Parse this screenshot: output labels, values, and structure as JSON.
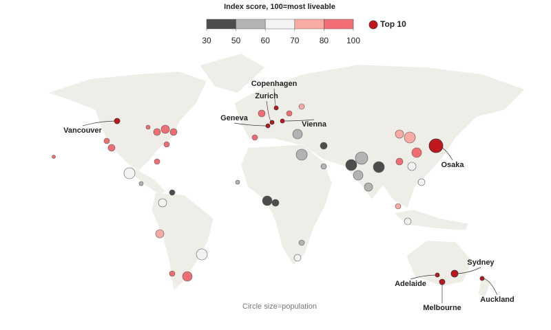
{
  "legend": {
    "title": "Index score, 100=most liveable",
    "ticks": [
      30,
      50,
      60,
      70,
      80,
      100
    ],
    "colors": [
      "#4d4d4d",
      "#b3b3b3",
      "#f3f3f3",
      "#f7aba3",
      "#f06e73"
    ],
    "top10": {
      "label": "Top 10",
      "color": "#c2161f"
    }
  },
  "cities": [
    "Vancouver",
    "Copenhagen",
    "Zurich",
    "Geneva",
    "Vienna",
    "Osaka",
    "Sydney",
    "Adelaide",
    "Melbourne",
    "Auckland"
  ],
  "footnote": "Circle size=population"
}
